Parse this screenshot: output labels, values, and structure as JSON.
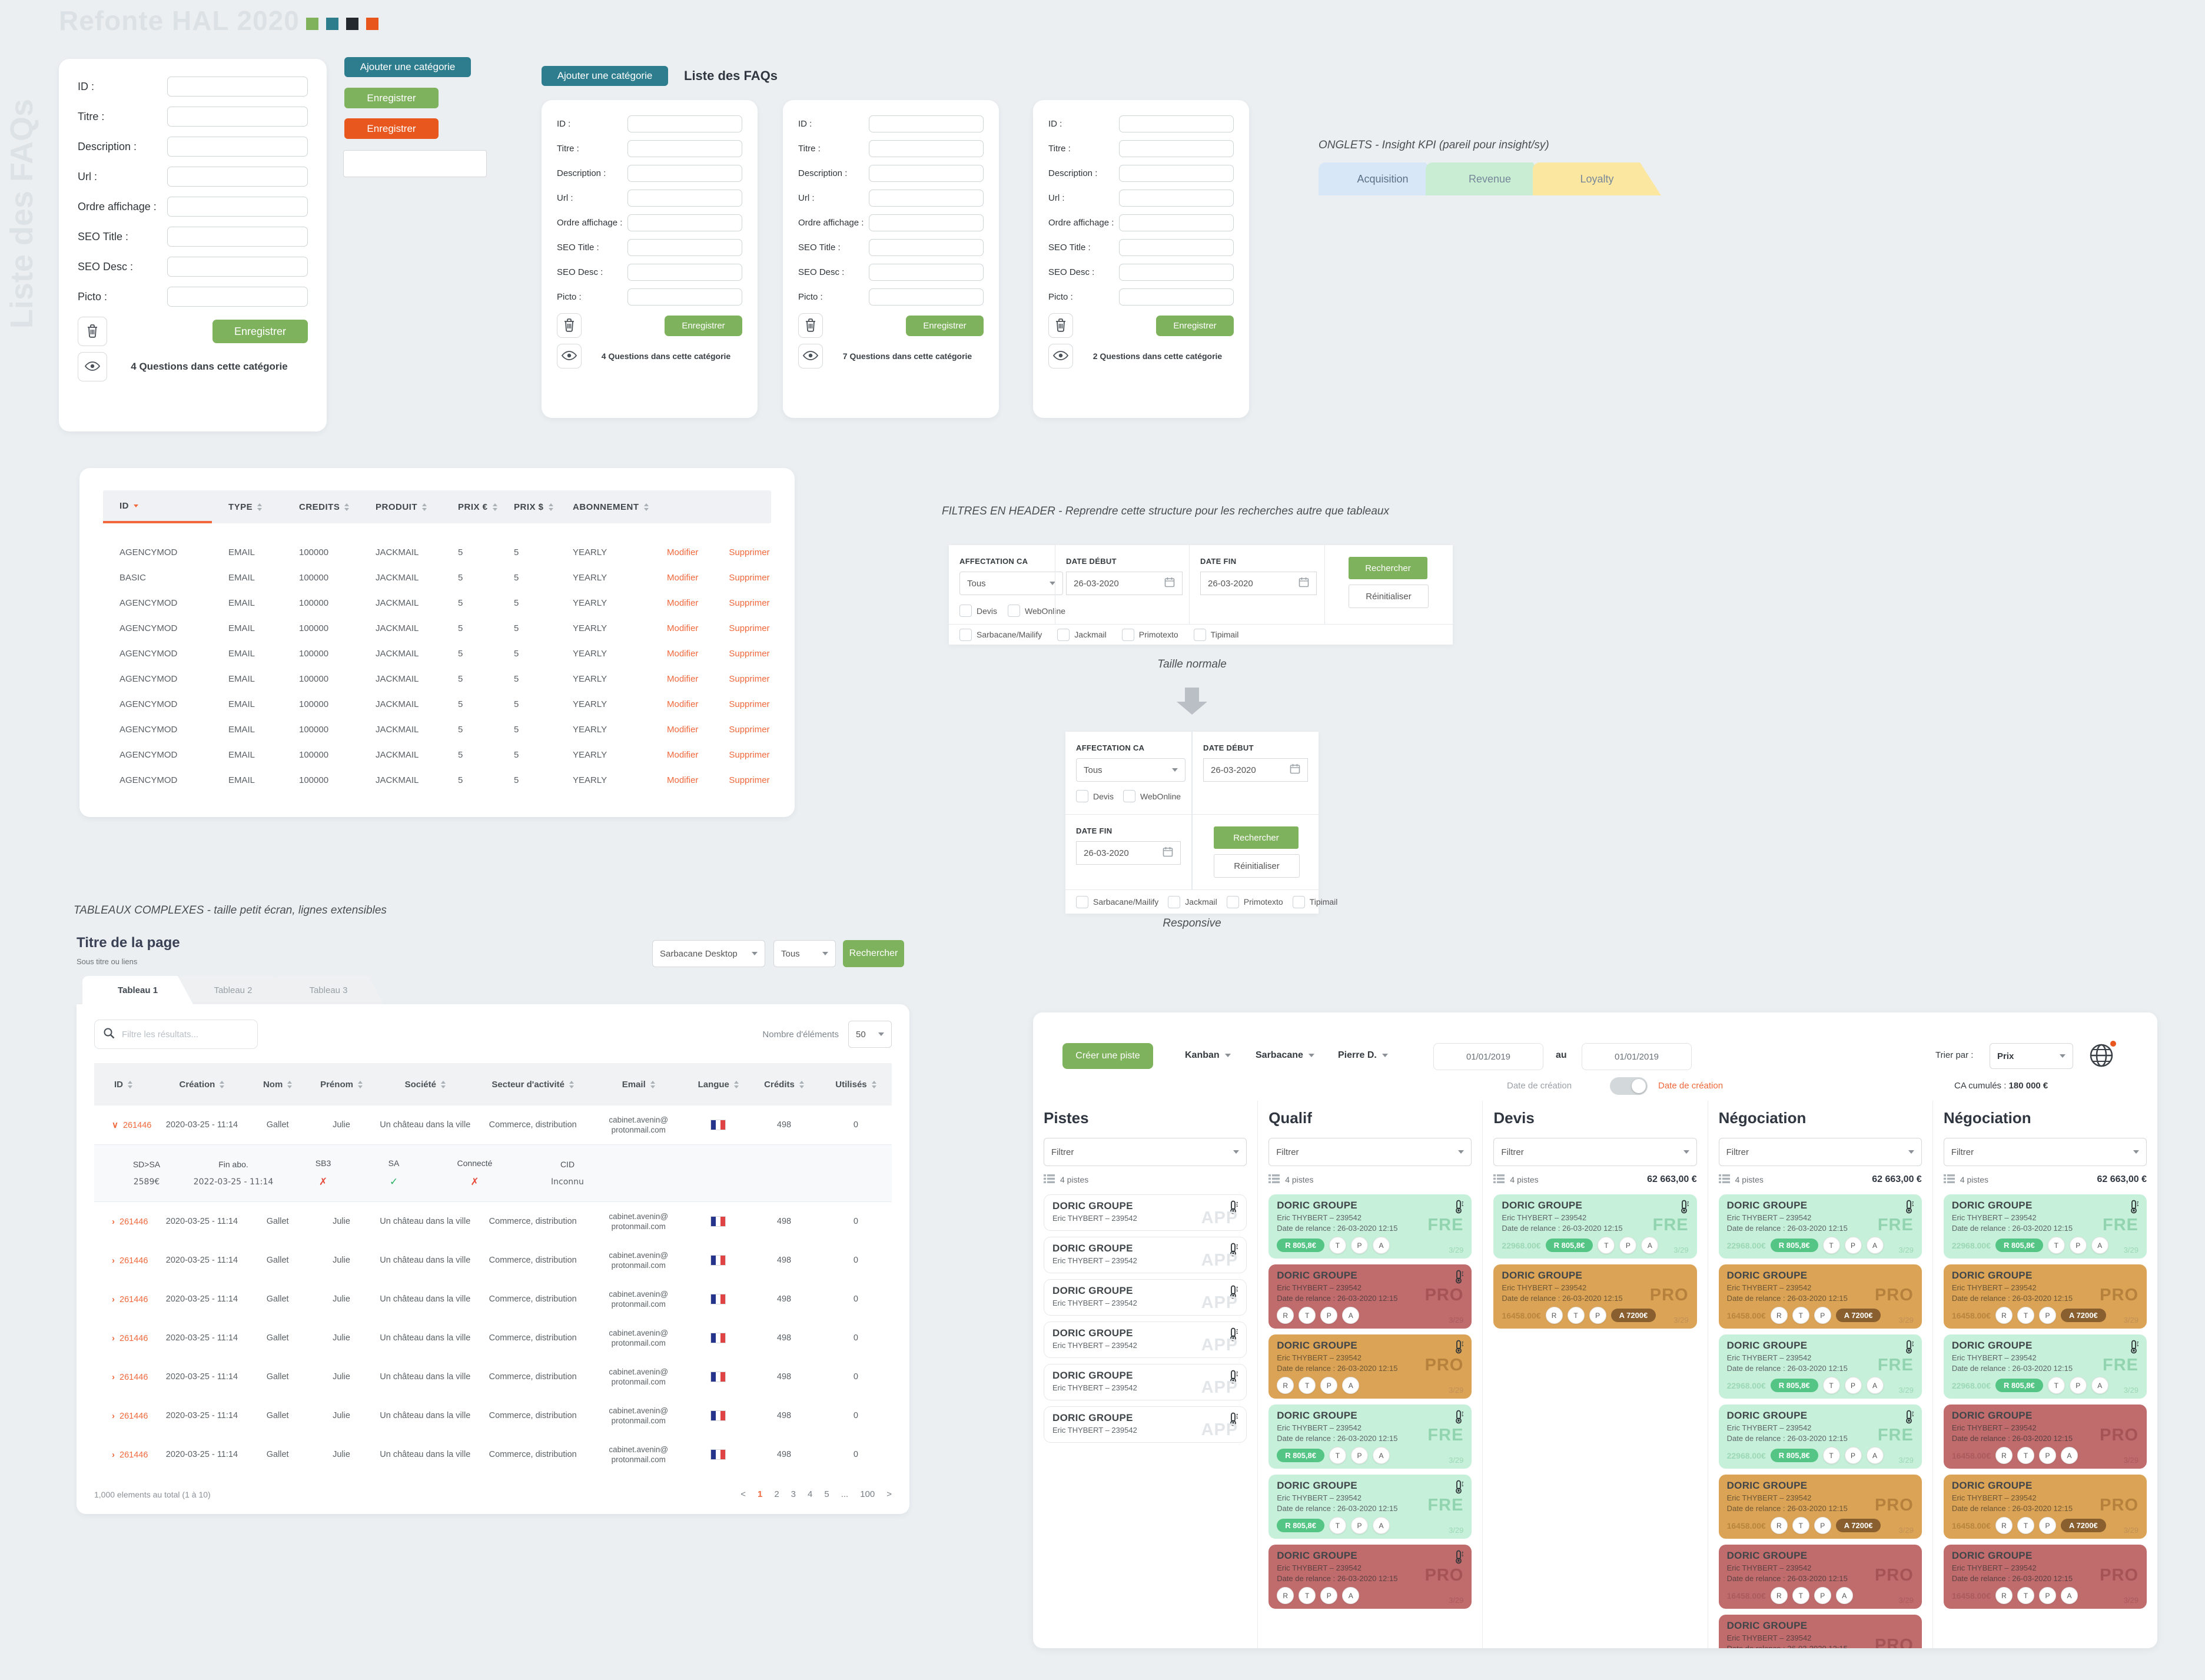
{
  "page": {
    "title": "Refonte HAL 2020",
    "swatches": [
      "#7fb25a",
      "#2e7d8c",
      "#22282e",
      "#e8561d"
    ],
    "side_label": "Liste des FAQs"
  },
  "buttons_demo": {
    "add_category": "Ajouter une catégorie",
    "save_green": "Enregistrer",
    "save_orange": "Enregistrer"
  },
  "faq": {
    "section_button": "Ajouter une catégorie",
    "section_title": "Liste des FAQs",
    "field_labels": [
      "ID :",
      "Titre :",
      "Description :",
      "Url :",
      "Ordre affichage :",
      "SEO Title :",
      "SEO Desc :",
      "Picto :"
    ],
    "save_label": "Enregistrer",
    "cards": [
      {
        "questions": "4 Questions dans cette catégorie"
      },
      {
        "questions": "4 Questions dans cette catégorie"
      },
      {
        "questions": "7 Questions dans cette catégorie"
      },
      {
        "questions": "2 Questions dans cette catégorie"
      }
    ]
  },
  "pricing_table": {
    "headers": [
      "ID",
      "TYPE",
      "CREDITS",
      "PRODUIT",
      "PRIX €",
      "PRIX $",
      "ABONNEMENT"
    ],
    "row_ids": [
      "AGENCYMOD",
      "BASIC",
      "AGENCYMOD",
      "AGENCYMOD",
      "AGENCYMOD",
      "AGENCYMOD",
      "AGENCYMOD",
      "AGENCYMOD",
      "AGENCYMOD",
      "AGENCYMOD"
    ],
    "row_values": {
      "type": "EMAIL",
      "credits": "100000",
      "produit": "JACKMAIL",
      "prix_eur": "5",
      "prix_usd": "5",
      "abonnement": "YEARLY"
    },
    "modifier": "Modifier",
    "supprimer": "Supprimer"
  },
  "onglets": {
    "note": "ONGLETS - Insight KPI (pareil pour insight/sy)",
    "tabs": [
      {
        "label": "Acquisition",
        "color": "#d7e7f8"
      },
      {
        "label": "Revenue",
        "color": "#c9edd3"
      },
      {
        "label": "Loyalty",
        "color": "#fbe7a0"
      }
    ]
  },
  "filters": {
    "note": "FILTRES EN HEADER - Reprendre cette structure pour les recherches autre que tableaux",
    "affectation_label": "AFFECTATION CA",
    "affectation_value": "Tous",
    "checkboxes_inline": [
      "Devis",
      "WebOnline"
    ],
    "date_debut_label": "DATE DÉBUT",
    "date_debut_value": "26-03-2020",
    "date_fin_label": "DATE FIN",
    "date_fin_value": "26-03-2020",
    "search_label": "Rechercher",
    "reset_label": "Réinitialiser",
    "checkboxes_bottom": [
      "Sarbacane/Mailify",
      "Jackmail",
      "Primotexto",
      "Tipimail"
    ],
    "size_normal": "Taille normale",
    "size_responsive": "Responsive"
  },
  "complex": {
    "note": "TABLEAUX COMPLEXES - taille petit écran, lignes extensibles",
    "page_title": "Titre de la page",
    "subtitle": "Sous titre ou liens",
    "select1": "Sarbacane Desktop",
    "select2": "Tous",
    "search_button": "Rechercher",
    "tabs": [
      "Tableau 1",
      "Tableau 2",
      "Tableau 3"
    ],
    "filter_placeholder": "Filtre les résultats...",
    "count_label": "Nombre d'éléments",
    "count_value": "50",
    "headers": [
      "ID",
      "Création",
      "Nom",
      "Prénom",
      "Société",
      "Secteur d'activité",
      "Email",
      "Langue",
      "Crédits",
      "Utilisés"
    ],
    "row": {
      "id": "261446",
      "creation": "2020-03-25 - 11:14",
      "nom": "Gallet",
      "prenom": "Julie",
      "societe": "Un château dans la ville",
      "secteur": "Commerce, distribution",
      "email_1": "cabinet.avenin@",
      "email_2": "protonmail.com",
      "credits": "498",
      "utilises": "0"
    },
    "row_count": 8,
    "expanded": [
      {
        "label": "SD>SA",
        "value": "2589€",
        "type": "text"
      },
      {
        "label": "Fin abo.",
        "value": "2022-03-25 - 11:14",
        "type": "text"
      },
      {
        "label": "SB3",
        "value": "✗",
        "type": "cross"
      },
      {
        "label": "SA",
        "value": "✓",
        "type": "check"
      },
      {
        "label": "Connecté",
        "value": "✗",
        "type": "cross"
      },
      {
        "label": "CID",
        "value": "Inconnu",
        "type": "text"
      }
    ],
    "footer": "1,000 elements au total (1 à 10)",
    "pagination": [
      "<",
      "1",
      "2",
      "3",
      "4",
      "5",
      "...",
      "100",
      ">"
    ]
  },
  "kanban": {
    "create_button": "Créer une piste",
    "dropdowns": [
      "Kanban",
      "Sarbacane",
      "Pierre D."
    ],
    "date_from": "01/01/2019",
    "date_sep": "au",
    "date_to": "01/01/2019",
    "toggle_left": "Date de création",
    "toggle_right": "Date de création",
    "sort_label": "Trier par :",
    "sort_value": "Prix",
    "ca_label": "CA cumulés :",
    "ca_value": "180 000 €",
    "filter_placeholder": "Filtrer",
    "count_text": "4 pistes",
    "card_defaults": {
      "company": "DORIC GROUPE",
      "contact": "Eric THYBERT – 239542",
      "relance": "Date de relance : 26-03-2020 12:15",
      "ratio": "3/29"
    },
    "card_values": {
      "fre_price": "22968.00€",
      "pro_price": "16458.00€",
      "pill": "R 805,8€",
      "end_pill": "A 7200€"
    },
    "watermarks": {
      "app": "APP",
      "fre": "FRE",
      "red": "PRO",
      "orange": "PRO"
    },
    "columns": [
      {
        "title": "Pistes",
        "total": "",
        "cards": [
          {
            "v": "app"
          },
          {
            "v": "app"
          },
          {
            "v": "app"
          },
          {
            "v": "app"
          },
          {
            "v": "app"
          },
          {
            "v": "app"
          }
        ]
      },
      {
        "title": "Qualif",
        "total": "",
        "cards": [
          {
            "v": "fre",
            "pill": true,
            "chips": [
              "T",
              "P",
              "A"
            ],
            "thermo": true
          },
          {
            "v": "red",
            "chips": [
              "R",
              "T",
              "P",
              "A"
            ],
            "thermo": true
          },
          {
            "v": "orange",
            "chips": [
              "R",
              "T",
              "P",
              "A"
            ],
            "thermo": true
          },
          {
            "v": "fre",
            "pill": true,
            "chips": [
              "T",
              "P",
              "A"
            ],
            "thermo": true
          },
          {
            "v": "fre",
            "pill": true,
            "chips": [
              "T",
              "P",
              "A"
            ],
            "thermo": true
          },
          {
            "v": "red",
            "chips": [
              "R",
              "T",
              "P",
              "A"
            ],
            "thermo": true
          }
        ]
      },
      {
        "title": "Devis",
        "total": "62 663,00 €",
        "cards": [
          {
            "v": "fre",
            "price": true,
            "pill": true,
            "chips": [
              "T",
              "P",
              "A"
            ],
            "thermo": true
          },
          {
            "v": "orange",
            "price": true,
            "chips": [
              "R",
              "T",
              "P"
            ],
            "end_pill": true
          }
        ]
      },
      {
        "title": "Négociation",
        "total": "62 663,00 €",
        "cards": [
          {
            "v": "fre",
            "price": true,
            "pill": true,
            "chips": [
              "T",
              "P",
              "A"
            ],
            "thermo": true
          },
          {
            "v": "orange",
            "price": true,
            "chips": [
              "R",
              "T",
              "P"
            ],
            "end_pill": true
          },
          {
            "v": "fre",
            "price": true,
            "pill": true,
            "chips": [
              "T",
              "P",
              "A"
            ],
            "thermo": true
          },
          {
            "v": "fre",
            "price": true,
            "pill": true,
            "chips": [
              "T",
              "P",
              "A"
            ],
            "thermo": true
          },
          {
            "v": "orange",
            "price": true,
            "chips": [
              "R",
              "T",
              "P"
            ],
            "end_pill": true
          },
          {
            "v": "red",
            "price": true,
            "chips": [
              "R",
              "T",
              "P",
              "A"
            ]
          },
          {
            "v": "red",
            "price": true,
            "chips": [
              "R",
              "T",
              "P",
              "A"
            ]
          },
          {
            "v": "red",
            "price": true,
            "chips": [
              "R",
              "T",
              "P",
              "A"
            ]
          }
        ]
      },
      {
        "title": "Négociation",
        "total": "62 663,00 €",
        "cards": [
          {
            "v": "fre",
            "price": true,
            "pill": true,
            "chips": [
              "T",
              "P",
              "A"
            ],
            "thermo": true
          },
          {
            "v": "orange",
            "price": true,
            "chips": [
              "R",
              "T",
              "P"
            ],
            "end_pill": true
          },
          {
            "v": "fre",
            "price": true,
            "pill": true,
            "chips": [
              "T",
              "P",
              "A"
            ],
            "thermo": true
          },
          {
            "v": "red",
            "price": true,
            "chips": [
              "R",
              "T",
              "P",
              "A"
            ]
          },
          {
            "v": "orange",
            "price": true,
            "chips": [
              "R",
              "T",
              "P"
            ],
            "end_pill": true
          },
          {
            "v": "red",
            "price": true,
            "chips": [
              "R",
              "T",
              "P",
              "A"
            ]
          }
        ]
      }
    ]
  }
}
